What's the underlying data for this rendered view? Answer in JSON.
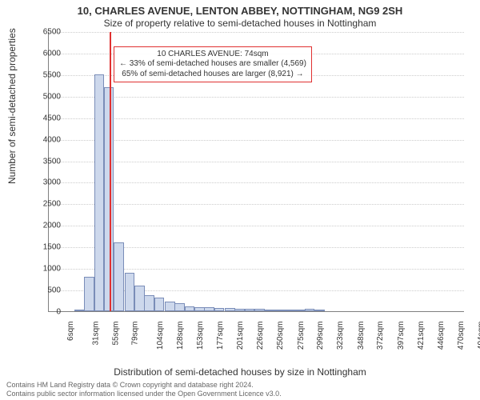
{
  "title_line1": "10, CHARLES AVENUE, LENTON ABBEY, NOTTINGHAM, NG9 2SH",
  "title_line2": "Size of property relative to semi-detached houses in Nottingham",
  "ylabel": "Number of semi-detached properties",
  "xlabel": "Distribution of semi-detached houses by size in Nottingham",
  "footer_line1": "Contains HM Land Registry data © Crown copyright and database right 2024.",
  "footer_line2": "Contains public sector information licensed under the Open Government Licence v3.0.",
  "chart": {
    "type": "histogram",
    "background_color": "#ffffff",
    "grid_color": "#cccccc",
    "axis_color": "#808080",
    "bar_fill": "#cdd8ec",
    "bar_border": "#7a8db8",
    "marker_color": "#e03030",
    "annotation_border": "#e03030",
    "title_fontsize": 13,
    "subtitle_fontsize": 12,
    "label_fontsize": 12,
    "tick_fontsize": 10,
    "ylim": [
      0,
      6500
    ],
    "ytick_step": 500,
    "yticks": [
      0,
      500,
      1000,
      1500,
      2000,
      2500,
      3000,
      3500,
      4000,
      4500,
      5000,
      5500,
      6000,
      6500
    ],
    "xlim_sqm": [
      0,
      506
    ],
    "xticks_sqm": [
      6,
      31,
      55,
      79,
      104,
      128,
      153,
      177,
      201,
      226,
      250,
      275,
      299,
      323,
      348,
      372,
      397,
      421,
      446,
      470,
      494
    ],
    "xtick_suffix": "sqm",
    "bin_width_sqm": 12.3,
    "bins": [
      {
        "start_sqm": 6,
        "count": 0
      },
      {
        "start_sqm": 18,
        "count": 0
      },
      {
        "start_sqm": 31,
        "count": 20
      },
      {
        "start_sqm": 43,
        "count": 800
      },
      {
        "start_sqm": 55,
        "count": 5500
      },
      {
        "start_sqm": 67,
        "count": 5200
      },
      {
        "start_sqm": 79,
        "count": 1600
      },
      {
        "start_sqm": 92,
        "count": 900
      },
      {
        "start_sqm": 104,
        "count": 600
      },
      {
        "start_sqm": 116,
        "count": 380
      },
      {
        "start_sqm": 128,
        "count": 320
      },
      {
        "start_sqm": 141,
        "count": 220
      },
      {
        "start_sqm": 153,
        "count": 180
      },
      {
        "start_sqm": 165,
        "count": 120
      },
      {
        "start_sqm": 177,
        "count": 100
      },
      {
        "start_sqm": 189,
        "count": 90
      },
      {
        "start_sqm": 201,
        "count": 80
      },
      {
        "start_sqm": 214,
        "count": 70
      },
      {
        "start_sqm": 226,
        "count": 60
      },
      {
        "start_sqm": 238,
        "count": 60
      },
      {
        "start_sqm": 250,
        "count": 50
      },
      {
        "start_sqm": 263,
        "count": 40
      },
      {
        "start_sqm": 275,
        "count": 30
      },
      {
        "start_sqm": 287,
        "count": 10
      },
      {
        "start_sqm": 299,
        "count": 10
      },
      {
        "start_sqm": 311,
        "count": 60
      },
      {
        "start_sqm": 323,
        "count": 10
      },
      {
        "start_sqm": 336,
        "count": 0
      },
      {
        "start_sqm": 348,
        "count": 0
      }
    ],
    "marker_sqm": 74,
    "annotation": {
      "line1": "10 CHARLES AVENUE: 74sqm",
      "line2": "← 33% of semi-detached houses are smaller (4,569)",
      "line3": "65% of semi-detached houses are larger (8,921) →",
      "center_sqm": 215,
      "y_value": 5800
    }
  }
}
